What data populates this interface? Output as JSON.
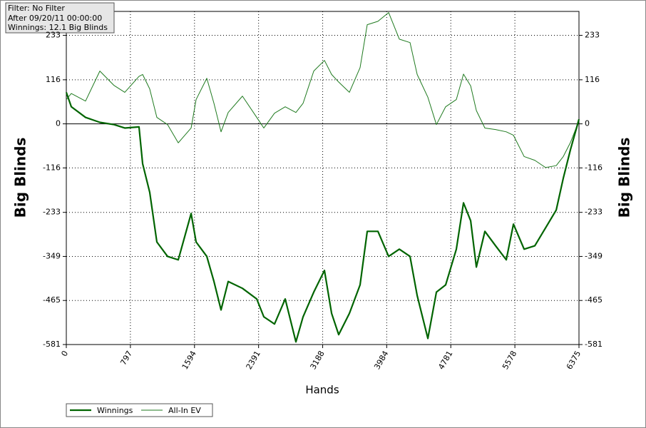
{
  "chart_data": {
    "type": "line",
    "info": [
      "Filter: No Filter",
      "After 09/20/11 00:00:00",
      "Winnings: 12.1 Big Blinds"
    ],
    "x_label": "Hands",
    "y_label": "Big Blinds",
    "x": [
      0,
      62,
      239,
      417,
      594,
      727,
      904,
      949,
      1037,
      1126,
      1259,
      1392,
      1552,
      1614,
      1747,
      1836,
      1924,
      2013,
      2190,
      2368,
      2456,
      2589,
      2722,
      2855,
      2944,
      3077,
      3210,
      3299,
      3387,
      3520,
      3653,
      3742,
      3875,
      4008,
      4141,
      4274,
      4363,
      4496,
      4602,
      4717,
      4850,
      4939,
      5028,
      5099,
      5205,
      5338,
      5471,
      5560,
      5693,
      5826,
      5959,
      6092,
      6180,
      6269,
      6375
    ],
    "series": [
      {
        "name": "Winnings",
        "color": "#006400",
        "width": 2.2,
        "values": [
          83,
          45,
          17,
          4,
          -2,
          -11,
          -8,
          -105,
          -180,
          -311,
          -349,
          -358,
          -236,
          -311,
          -349,
          -415,
          -490,
          -415,
          -433,
          -461,
          -508,
          -527,
          -461,
          -574,
          -508,
          -443,
          -386,
          -499,
          -555,
          -499,
          -424,
          -283,
          -283,
          -349,
          -330,
          -349,
          -452,
          -565,
          -443,
          -424,
          -330,
          -208,
          -255,
          -377,
          -283,
          -321,
          -358,
          -264,
          -330,
          -321,
          -274,
          -227,
          -143,
          -68,
          12.1
        ]
      },
      {
        "name": "All-In EV",
        "color": "#1f7a1f",
        "width": 1,
        "values": [
          64,
          80,
          60,
          139,
          101,
          83,
          125,
          130,
          92,
          17,
          -2,
          -50,
          -11,
          64,
          120,
          54,
          -21,
          30,
          73,
          17,
          -11,
          28,
          45,
          30,
          54,
          139,
          167,
          130,
          110,
          83,
          148,
          261,
          270,
          293,
          223,
          214,
          130,
          70,
          -2,
          45,
          64,
          131,
          100,
          35,
          -11,
          -15,
          -21,
          -30,
          -86,
          -96,
          -115,
          -110,
          -86,
          -49,
          8
        ]
      }
    ],
    "xlim": [
      0,
      6375
    ],
    "xticks": [
      0,
      797,
      1594,
      2391,
      3188,
      3984,
      4781,
      5578,
      6375
    ],
    "ylim": [
      -581,
      296
    ],
    "yticks": [
      -581,
      -465,
      -349,
      -233,
      -116,
      0,
      116,
      233
    ],
    "grid": true
  }
}
